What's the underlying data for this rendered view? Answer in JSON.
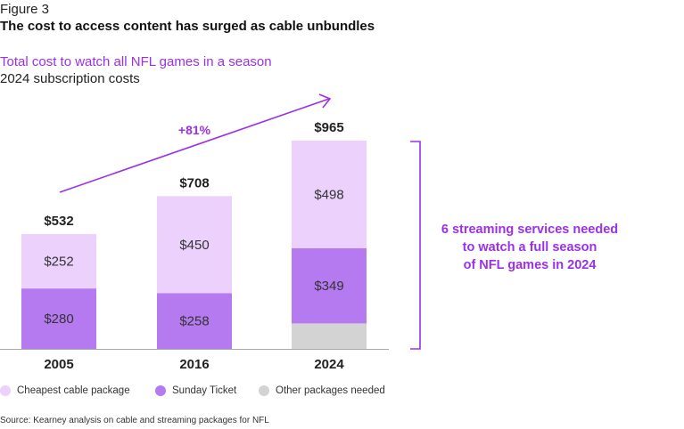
{
  "figure_label": "Figure 3",
  "chart_data": {
    "type": "bar",
    "stacked": true,
    "title": "The cost to access content has surged as cable unbundles",
    "subtitle": "Total cost to watch all NFL games in a season",
    "subtitle2": "2024 subscription costs",
    "categories": [
      "2005",
      "2016",
      "2024"
    ],
    "totals": [
      "$532",
      "$708",
      "$965"
    ],
    "series": [
      {
        "name": "Other packages needed",
        "color": "#d3d3d3",
        "values": [
          0,
          0,
          118
        ],
        "labels": [
          "",
          "",
          ""
        ]
      },
      {
        "name": "Sunday Ticket",
        "color": "#b57af0",
        "values": [
          280,
          258,
          349
        ],
        "labels": [
          "$280",
          "$258",
          "$349"
        ]
      },
      {
        "name": "Cheapest cable package",
        "color": "#ebd1fc",
        "values": [
          252,
          450,
          498
        ],
        "labels": [
          "$252",
          "$450",
          "$498"
        ]
      }
    ],
    "ylim": [
      0,
      965
    ],
    "growth_annotation": "+81%",
    "bracket_annotation": [
      "6 streaming services needed",
      "to watch a full season",
      "of NFL games in 2024"
    ],
    "legend": [
      "Cheapest cable package",
      "Sunday Ticket",
      "Other packages needed"
    ],
    "legend_position": "bottom",
    "grid": false
  },
  "accent_color": "#9b30e8",
  "source": "Source: Kearney analysis on cable and streaming packages for NFL"
}
